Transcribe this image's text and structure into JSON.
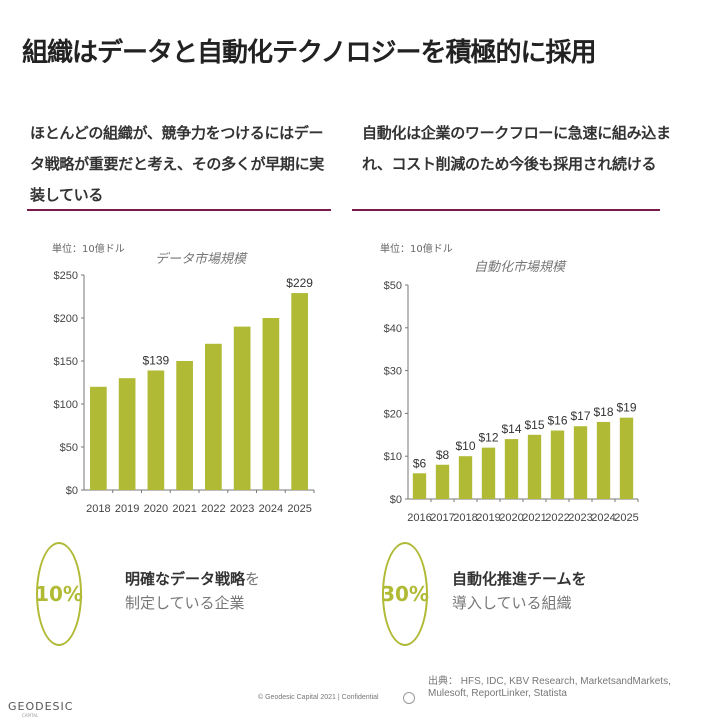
{
  "title": "組織はデータと自動化テクノロジーを積極的に採用",
  "left": {
    "lead": [
      "ほとんどの組織が、競争力をつけるにはデー",
      "タ戦略が重要だと考え、その多くが早期に実",
      "装している"
    ],
    "stat": {
      "value": "10%",
      "bold": "明確なデータ戦略",
      "rest": "を",
      "line2": "制定している企業"
    }
  },
  "right": {
    "lead": [
      "自動化は企業のワークフローに急速に組み込ま",
      "れ、コスト削減のため今後も採用され続ける"
    ],
    "stat": {
      "value": "30%",
      "bold": "自動化推進チームを",
      "rest": "",
      "line2": "導入している組織"
    }
  },
  "chart_data": [
    {
      "type": "bar",
      "title": "データ市場規模",
      "unit": "単位：10億ドル",
      "categories": [
        "2018",
        "2019",
        "2020",
        "2021",
        "2022",
        "2023",
        "2024",
        "2025"
      ],
      "values": [
        120,
        130,
        139,
        150,
        170,
        190,
        200,
        229
      ],
      "data_labels": {
        "2020": "$139",
        "2025": "$229"
      },
      "ylim": [
        0,
        250
      ],
      "yticks": [
        "$0",
        "$50",
        "$100",
        "$150",
        "$200",
        "$250"
      ],
      "grid": false,
      "color": "#b0ba34"
    },
    {
      "type": "bar",
      "title": "自動化市場規模",
      "unit": "単位：10億ドル",
      "categories": [
        "2016",
        "2017",
        "2018",
        "2019",
        "2020",
        "2021",
        "2022",
        "2023",
        "2024",
        "2025"
      ],
      "values": [
        6,
        8,
        10,
        12,
        14,
        15,
        16,
        17,
        18,
        19
      ],
      "data_labels": {
        "2016": "$6",
        "2017": "$8",
        "2018": "$10",
        "2019": "$12",
        "2020": "$14",
        "2021": "$15",
        "2022": "$16",
        "2023": "$17",
        "2024": "$18",
        "2025": "$19"
      },
      "ylim": [
        0,
        50
      ],
      "yticks": [
        "$0",
        "$10",
        "$20",
        "$30",
        "$40",
        "$50"
      ],
      "grid": false,
      "color": "#b0ba34"
    }
  ],
  "footer": {
    "logo": "GEODESIC",
    "logo_sub": "CAPITAL",
    "copyright": "© Geodesic Capital 2021 | Confidential",
    "source": "出典： HFS, IDC, KBV Research, MarketsandMarkets, Mulesoft, ReportLinker, Statista"
  }
}
